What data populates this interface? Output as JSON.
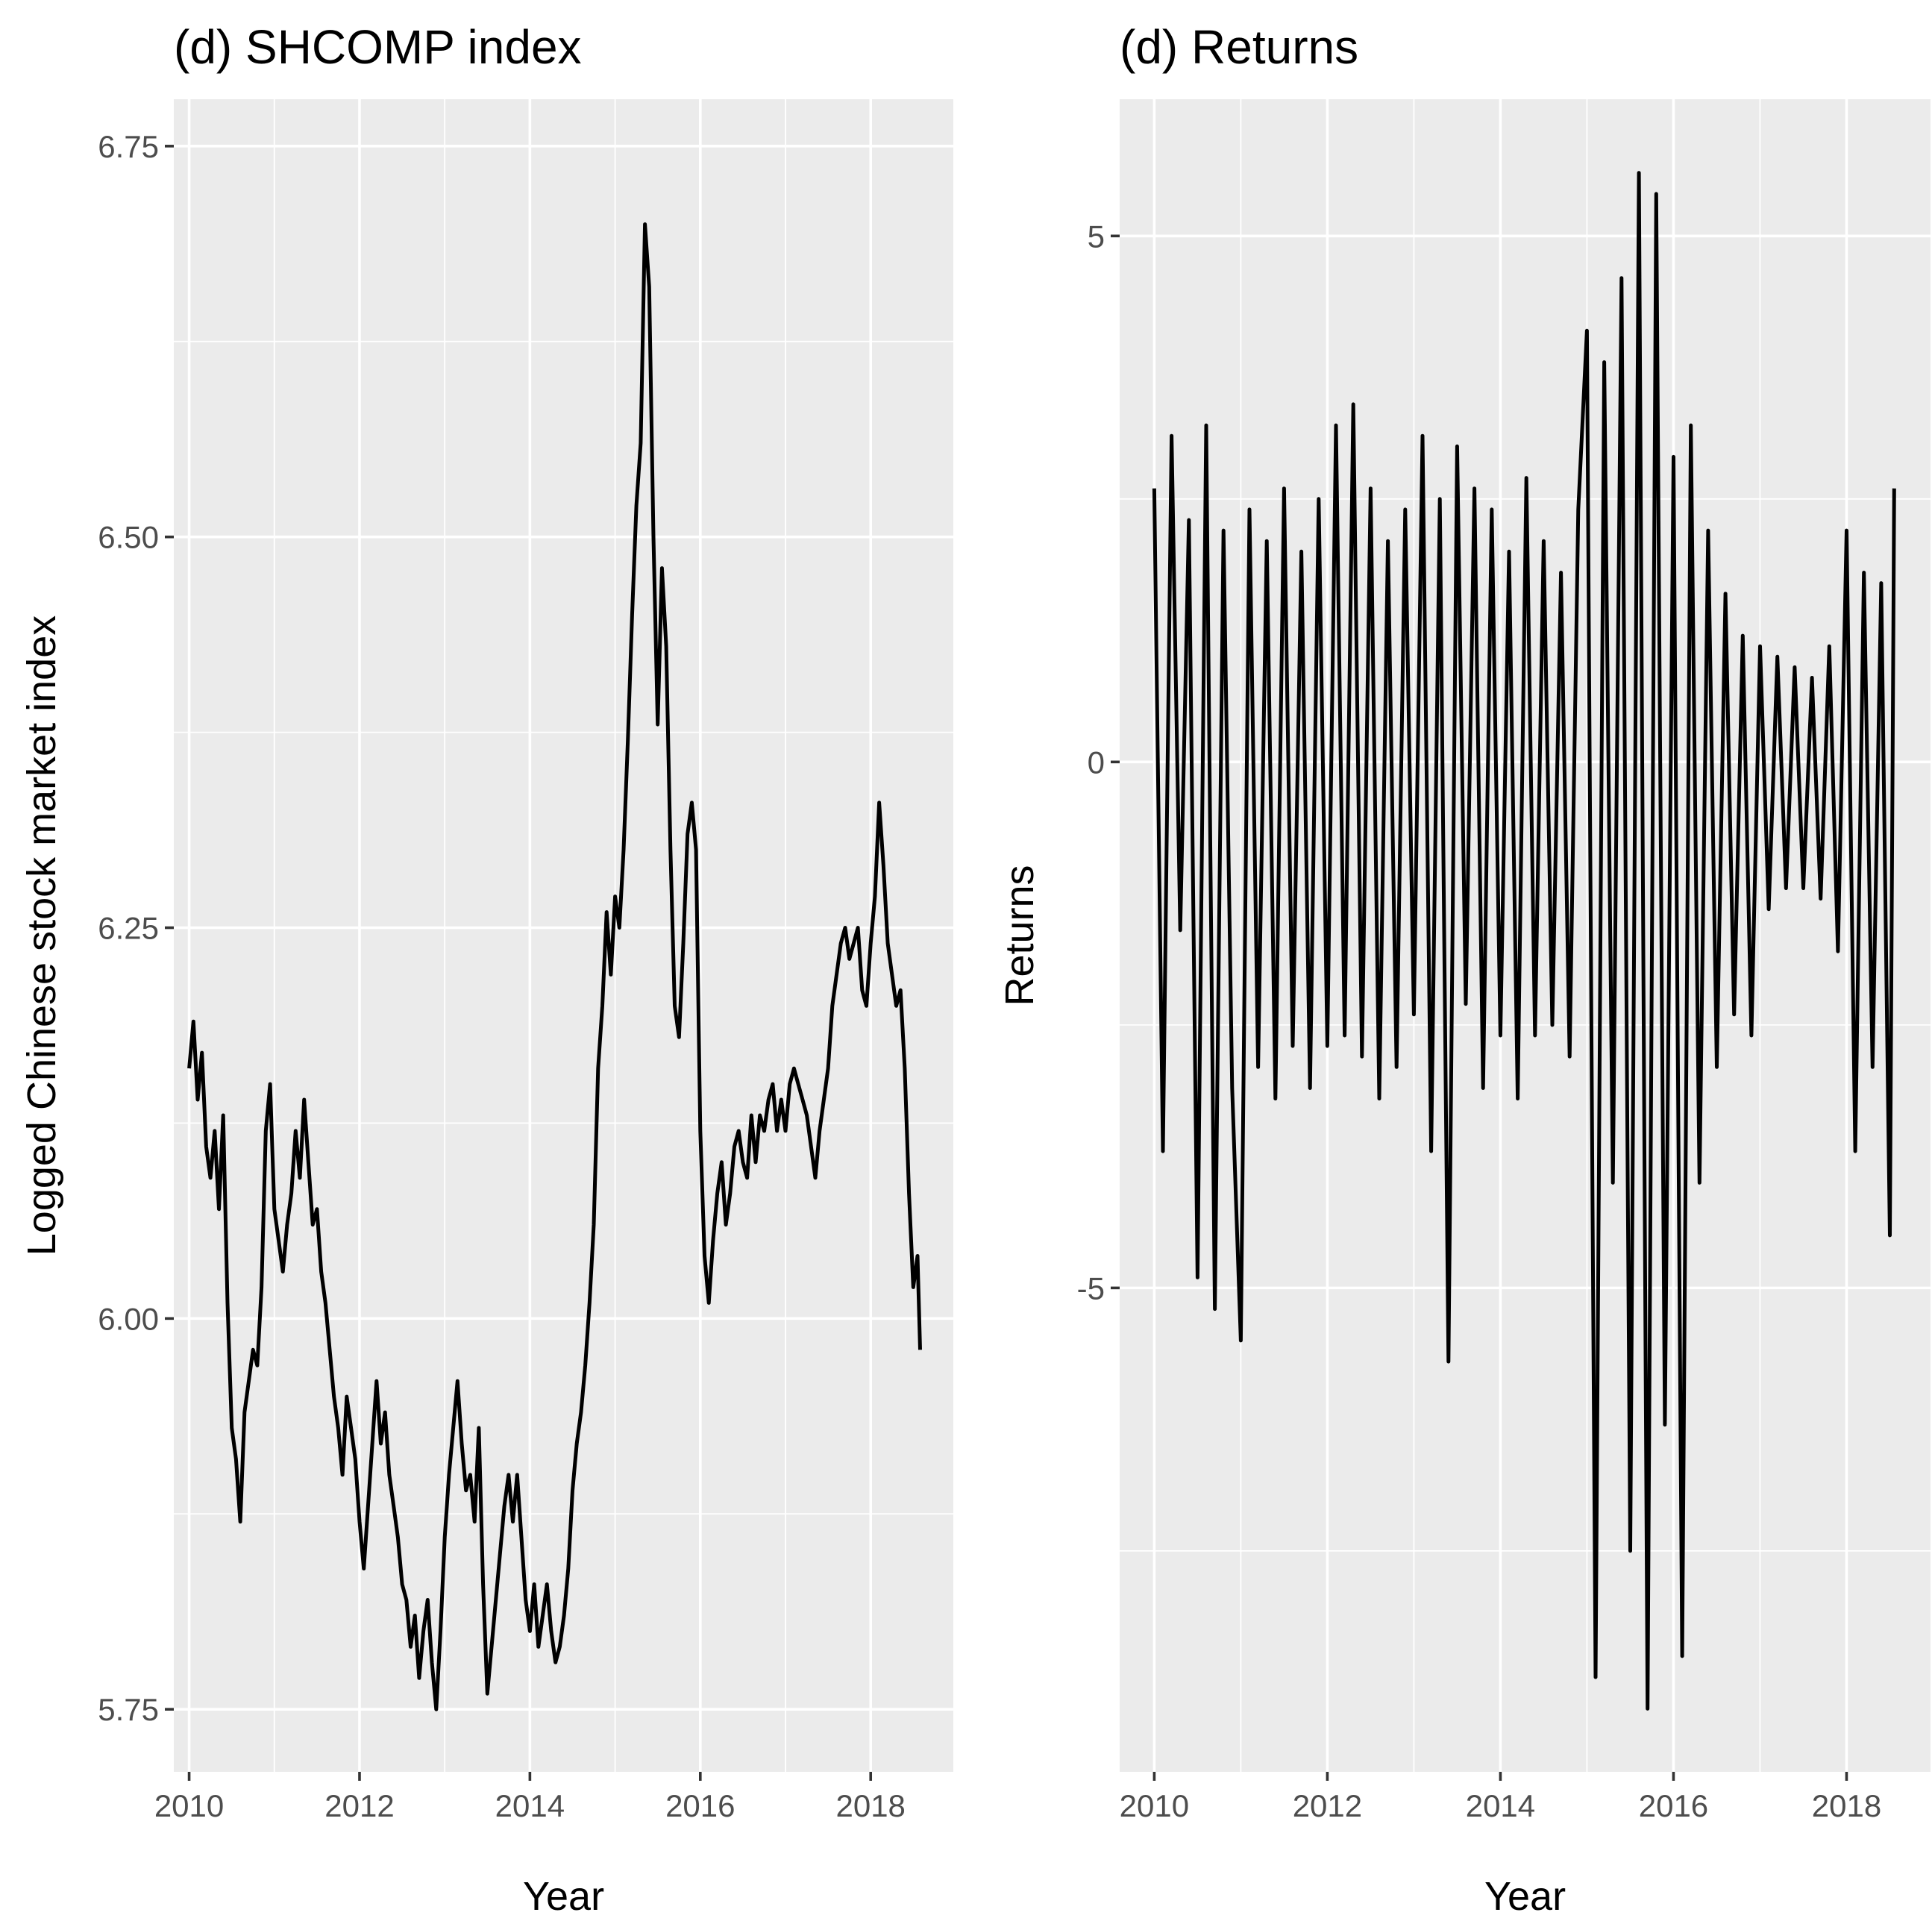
{
  "chart_data": [
    {
      "type": "line",
      "title": "(d) SHCOMP index",
      "xlabel": "Year",
      "ylabel": "Logged Chinese stock market index",
      "xlim": [
        2009.82,
        2018.97
      ],
      "ylim": [
        5.71,
        6.78
      ],
      "x_ticks": [
        2010,
        2012,
        2014,
        2016,
        2018
      ],
      "x_tick_labels": [
        "2010",
        "2012",
        "2014",
        "2016",
        "2018"
      ],
      "y_ticks": [
        5.75,
        6.0,
        6.25,
        6.5,
        6.75
      ],
      "y_tick_labels": [
        "5.75",
        "6.00",
        "6.25",
        "6.50",
        "6.75"
      ],
      "grid": true,
      "series": [
        {
          "x": [
            2010.0,
            2010.05,
            2010.1,
            2010.15,
            2010.2,
            2010.25,
            2010.3,
            2010.35,
            2010.4,
            2010.45,
            2010.5,
            2010.55,
            2010.6,
            2010.65,
            2010.7,
            2010.75,
            2010.8,
            2010.85,
            2010.9,
            2010.95,
            2011.0,
            2011.05,
            2011.1,
            2011.15,
            2011.2,
            2011.25,
            2011.3,
            2011.35,
            2011.4,
            2011.45,
            2011.5,
            2011.55,
            2011.6,
            2011.65,
            2011.7,
            2011.75,
            2011.8,
            2011.85,
            2011.9,
            2011.95,
            2012.0,
            2012.05,
            2012.1,
            2012.15,
            2012.2,
            2012.25,
            2012.3,
            2012.35,
            2012.4,
            2012.45,
            2012.5,
            2012.55,
            2012.6,
            2012.65,
            2012.7,
            2012.75,
            2012.8,
            2012.85,
            2012.9,
            2012.95,
            2013.0,
            2013.05,
            2013.1,
            2013.15,
            2013.2,
            2013.25,
            2013.3,
            2013.35,
            2013.4,
            2013.45,
            2013.5,
            2013.55,
            2013.6,
            2013.65,
            2013.7,
            2013.75,
            2013.8,
            2013.85,
            2013.9,
            2013.95,
            2014.0,
            2014.05,
            2014.1,
            2014.15,
            2014.2,
            2014.25,
            2014.3,
            2014.35,
            2014.4,
            2014.45,
            2014.5,
            2014.55,
            2014.6,
            2014.65,
            2014.7,
            2014.75,
            2014.8,
            2014.85,
            2014.9,
            2014.95,
            2015.0,
            2015.05,
            2015.1,
            2015.15,
            2015.2,
            2015.25,
            2015.3,
            2015.35,
            2015.4,
            2015.45,
            2015.5,
            2015.55,
            2015.6,
            2015.65,
            2015.7,
            2015.75,
            2015.8,
            2015.85,
            2015.9,
            2015.95,
            2016.0,
            2016.05,
            2016.1,
            2016.15,
            2016.2,
            2016.25,
            2016.3,
            2016.35,
            2016.4,
            2016.45,
            2016.5,
            2016.55,
            2016.6,
            2016.65,
            2016.7,
            2016.75,
            2016.8,
            2016.85,
            2016.9,
            2016.95,
            2017.0,
            2017.05,
            2017.1,
            2017.15,
            2017.2,
            2017.25,
            2017.3,
            2017.35,
            2017.4,
            2017.45,
            2017.5,
            2017.55,
            2017.6,
            2017.65,
            2017.7,
            2017.75,
            2017.8,
            2017.85,
            2017.9,
            2017.95,
            2018.0,
            2018.05,
            2018.1,
            2018.15,
            2018.2,
            2018.25,
            2018.3,
            2018.35,
            2018.4,
            2018.45,
            2018.5,
            2018.55,
            2018.58
          ],
          "values": [
            6.16,
            6.19,
            6.14,
            6.17,
            6.11,
            6.09,
            6.12,
            6.07,
            6.13,
            6.01,
            5.93,
            5.91,
            5.87,
            5.94,
            5.96,
            5.98,
            5.97,
            6.02,
            6.12,
            6.15,
            6.07,
            6.05,
            6.03,
            6.06,
            6.08,
            6.12,
            6.09,
            6.14,
            6.1,
            6.06,
            6.07,
            6.03,
            6.01,
            5.98,
            5.95,
            5.93,
            5.9,
            5.95,
            5.93,
            5.91,
            5.87,
            5.84,
            5.88,
            5.92,
            5.96,
            5.92,
            5.94,
            5.9,
            5.88,
            5.86,
            5.83,
            5.82,
            5.79,
            5.81,
            5.77,
            5.8,
            5.82,
            5.78,
            5.75,
            5.8,
            5.86,
            5.9,
            5.93,
            5.96,
            5.92,
            5.89,
            5.9,
            5.87,
            5.93,
            5.83,
            5.76,
            5.79,
            5.82,
            5.85,
            5.88,
            5.9,
            5.87,
            5.9,
            5.86,
            5.82,
            5.8,
            5.83,
            5.79,
            5.81,
            5.83,
            5.8,
            5.78,
            5.79,
            5.81,
            5.84,
            5.89,
            5.92,
            5.94,
            5.97,
            6.01,
            6.06,
            6.16,
            6.2,
            6.26,
            6.22,
            6.27,
            6.25,
            6.3,
            6.37,
            6.45,
            6.52,
            6.56,
            6.7,
            6.66,
            6.5,
            6.38,
            6.48,
            6.43,
            6.3,
            6.2,
            6.18,
            6.24,
            6.31,
            6.33,
            6.3,
            6.12,
            6.04,
            6.01,
            6.05,
            6.08,
            6.1,
            6.06,
            6.08,
            6.11,
            6.12,
            6.1,
            6.09,
            6.13,
            6.1,
            6.13,
            6.12,
            6.14,
            6.15,
            6.12,
            6.14,
            6.12,
            6.15,
            6.16,
            6.15,
            6.14,
            6.13,
            6.11,
            6.09,
            6.12,
            6.14,
            6.16,
            6.2,
            6.22,
            6.24,
            6.25,
            6.23,
            6.24,
            6.25,
            6.21,
            6.2,
            6.24,
            6.27,
            6.33,
            6.29,
            6.24,
            6.22,
            6.2,
            6.21,
            6.16,
            6.08,
            6.02,
            6.04,
            5.98
          ]
        }
      ]
    },
    {
      "type": "line",
      "title": "(d) Returns",
      "xlabel": "Year",
      "ylabel": "Returns",
      "xlim": [
        2009.6,
        2018.97
      ],
      "ylim": [
        -9.6,
        6.3
      ],
      "x_ticks": [
        2010,
        2012,
        2014,
        2016,
        2018
      ],
      "x_tick_labels": [
        "2010",
        "2012",
        "2014",
        "2016",
        "2018"
      ],
      "y_ticks": [
        -5,
        0,
        5
      ],
      "y_tick_labels": [
        "-5",
        "0",
        "5"
      ],
      "grid": true,
      "series": [
        {
          "x": [
            2010.0,
            2010.1,
            2010.2,
            2010.3,
            2010.4,
            2010.5,
            2010.6,
            2010.7,
            2010.8,
            2010.9,
            2011.0,
            2011.1,
            2011.2,
            2011.3,
            2011.4,
            2011.5,
            2011.6,
            2011.7,
            2011.8,
            2011.9,
            2012.0,
            2012.1,
            2012.2,
            2012.3,
            2012.4,
            2012.5,
            2012.6,
            2012.7,
            2012.8,
            2012.9,
            2013.0,
            2013.1,
            2013.2,
            2013.3,
            2013.4,
            2013.5,
            2013.6,
            2013.7,
            2013.8,
            2013.9,
            2014.0,
            2014.1,
            2014.2,
            2014.3,
            2014.4,
            2014.5,
            2014.6,
            2014.7,
            2014.8,
            2014.9,
            2015.0,
            2015.1,
            2015.2,
            2015.3,
            2015.4,
            2015.5,
            2015.6,
            2015.7,
            2015.8,
            2015.9,
            2016.0,
            2016.1,
            2016.2,
            2016.3,
            2016.4,
            2016.5,
            2016.6,
            2016.7,
            2016.8,
            2016.9,
            2017.0,
            2017.1,
            2017.2,
            2017.3,
            2017.4,
            2017.5,
            2017.6,
            2017.7,
            2017.8,
            2017.9,
            2018.0,
            2018.1,
            2018.2,
            2018.3,
            2018.4,
            2018.5,
            2018.55
          ],
          "values": [
            2.6,
            -3.7,
            3.1,
            -1.6,
            2.3,
            -4.9,
            3.2,
            -5.2,
            2.2,
            -3.1,
            -5.5,
            2.4,
            -2.9,
            2.1,
            -3.2,
            2.6,
            -2.7,
            2.0,
            -3.1,
            2.5,
            -2.7,
            3.2,
            -2.6,
            3.4,
            -2.8,
            2.6,
            -3.2,
            2.1,
            -2.9,
            2.4,
            -2.4,
            3.1,
            -3.7,
            2.5,
            -5.7,
            3.0,
            -2.3,
            2.6,
            -3.1,
            2.4,
            -2.6,
            2.0,
            -3.2,
            2.7,
            -2.6,
            2.1,
            -2.5,
            1.8,
            -2.8,
            2.4,
            4.1,
            -8.7,
            3.8,
            -4.0,
            4.6,
            -7.5,
            5.6,
            -9.0,
            5.4,
            -6.3,
            2.9,
            -8.5,
            3.2,
            -4.0,
            2.2,
            -2.9,
            1.6,
            -2.4,
            1.2,
            -2.6,
            1.1,
            -1.4,
            1.0,
            -1.2,
            0.9,
            -1.2,
            0.8,
            -1.3,
            1.1,
            -1.8,
            2.2,
            -3.7,
            1.8,
            -2.9,
            1.7,
            -4.5,
            2.6
          ]
        }
      ]
    }
  ]
}
